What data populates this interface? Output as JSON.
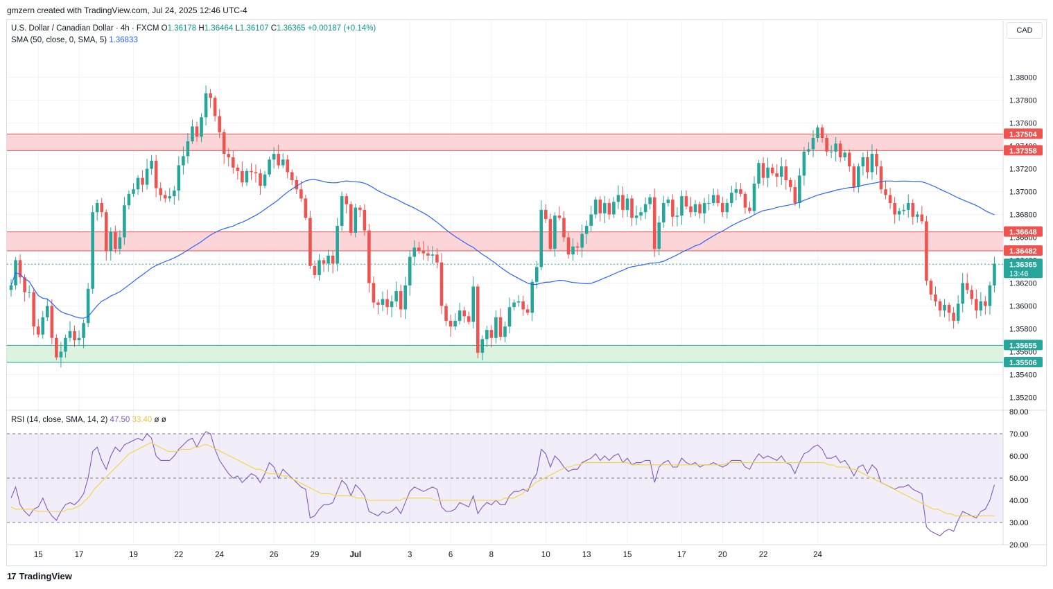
{
  "header": {
    "caption": "gmzern created with TradingView.com, Jul 24, 2025 12:46 UTC-4"
  },
  "legend": {
    "symbol": "U.S. Dollar / Canadian Dollar · 4h · FXCM",
    "o_label": "O",
    "o": "1.36178",
    "h_label": "H",
    "h": "1.36464",
    "l_label": "L",
    "l": "1.36107",
    "c_label": "C",
    "c": "1.36365",
    "change": "+0.00187 (+0.14%)",
    "sma_label": "SMA (50, close, 0, SMA, 5)",
    "sma_value": "1.36833",
    "rsi_label": "RSI (14, close, SMA, 14, 2)",
    "rsi_value": "47.50",
    "rsi_ma_value": "33.40",
    "rsi_extra1": "ø",
    "rsi_extra2": "ø"
  },
  "currency_button": "CAD",
  "footer": {
    "brand": "TradingView",
    "mark": "17"
  },
  "colors": {
    "up": "#26a69a",
    "down": "#ef5350",
    "sma": "#2962ff",
    "rsi": "#7e57c2",
    "rsi_ma": "#f5d33d",
    "resistance_zone": "#fbd5d8",
    "support_zone": "#dcf3df"
  },
  "chart_data": [
    {
      "type": "candlestick",
      "title": "U.S. Dollar / Canadian Dollar · 4h · FXCM",
      "ylim": [
        1.351,
        1.383
      ],
      "y_ticks": [
        "1.38000",
        "1.37800",
        "1.37600",
        "1.37400",
        "1.37200",
        "1.37000",
        "1.36800",
        "1.36600",
        "1.36400",
        "1.36200",
        "1.36000",
        "1.35800",
        "1.35600",
        "1.35400",
        "1.35200"
      ],
      "x_ticks": [
        {
          "label": "15",
          "index": 6
        },
        {
          "label": "17",
          "index": 15
        },
        {
          "label": "19",
          "index": 27
        },
        {
          "label": "22",
          "index": 37
        },
        {
          "label": "24",
          "index": 46
        },
        {
          "label": "26",
          "index": 58
        },
        {
          "label": "29",
          "index": 67
        },
        {
          "label": "Jul",
          "index": 76
        },
        {
          "label": "3",
          "index": 88
        },
        {
          "label": "6",
          "index": 97
        },
        {
          "label": "8",
          "index": 106
        },
        {
          "label": "10",
          "index": 118
        },
        {
          "label": "13",
          "index": 127
        },
        {
          "label": "15",
          "index": 136
        },
        {
          "label": "17",
          "index": 148
        },
        {
          "label": "20",
          "index": 157
        },
        {
          "label": "22",
          "index": 166
        },
        {
          "label": "24",
          "index": 178
        }
      ],
      "candle_closes": [
        1.3618,
        1.364,
        1.3625,
        1.3612,
        1.3612,
        1.3582,
        1.3575,
        1.359,
        1.36,
        1.3572,
        1.3555,
        1.356,
        1.3572,
        1.3578,
        1.357,
        1.3572,
        1.3585,
        1.3615,
        1.3682,
        1.369,
        1.3682,
        1.3648,
        1.3665,
        1.365,
        1.366,
        1.3688,
        1.3698,
        1.3702,
        1.3712,
        1.3706,
        1.372,
        1.3727,
        1.3703,
        1.3697,
        1.3694,
        1.3696,
        1.3701,
        1.3723,
        1.3731,
        1.3744,
        1.3757,
        1.3748,
        1.3765,
        1.3786,
        1.3782,
        1.3766,
        1.3752,
        1.3733,
        1.373,
        1.3721,
        1.3718,
        1.3708,
        1.3718,
        1.3717,
        1.3716,
        1.3705,
        1.3715,
        1.3728,
        1.3733,
        1.3723,
        1.3728,
        1.3717,
        1.371,
        1.3702,
        1.3694,
        1.3677,
        1.3635,
        1.3627,
        1.364,
        1.3637,
        1.3644,
        1.3637,
        1.367,
        1.3696,
        1.3689,
        1.3664,
        1.3686,
        1.3684,
        1.3666,
        1.362,
        1.3603,
        1.3601,
        1.3606,
        1.3599,
        1.3604,
        1.3613,
        1.3597,
        1.3618,
        1.3643,
        1.3651,
        1.3648,
        1.3646,
        1.3644,
        1.3645,
        1.3638,
        1.36,
        1.3587,
        1.3582,
        1.3587,
        1.3596,
        1.3591,
        1.3586,
        1.3617,
        1.3559,
        1.3571,
        1.3579,
        1.3572,
        1.359,
        1.3573,
        1.3582,
        1.3599,
        1.3603,
        1.3604,
        1.3597,
        1.3594,
        1.3621,
        1.3634,
        1.3684,
        1.3676,
        1.365,
        1.3679,
        1.3677,
        1.366,
        1.3645,
        1.3652,
        1.3651,
        1.3663,
        1.367,
        1.368,
        1.3693,
        1.3681,
        1.369,
        1.368,
        1.3691,
        1.3697,
        1.3684,
        1.3694,
        1.3677,
        1.3679,
        1.3682,
        1.3689,
        1.3695,
        1.365,
        1.3673,
        1.369,
        1.3693,
        1.3678,
        1.3679,
        1.3696,
        1.3687,
        1.3682,
        1.3689,
        1.3681,
        1.369,
        1.369,
        1.3697,
        1.369,
        1.3682,
        1.369,
        1.3699,
        1.3702,
        1.3698,
        1.3686,
        1.3683,
        1.3707,
        1.3725,
        1.3712,
        1.3721,
        1.3716,
        1.3713,
        1.3722,
        1.371,
        1.3704,
        1.369,
        1.3714,
        1.3735,
        1.3737,
        1.3747,
        1.3756,
        1.3747,
        1.3735,
        1.3735,
        1.3742,
        1.373,
        1.3734,
        1.3722,
        1.3704,
        1.3722,
        1.373,
        1.3717,
        1.3733,
        1.3722,
        1.3702,
        1.3697,
        1.369,
        1.368,
        1.3683,
        1.3684,
        1.369,
        1.3678,
        1.368,
        1.3674,
        1.3622,
        1.361,
        1.3604,
        1.3596,
        1.3601,
        1.3594,
        1.3587,
        1.3602,
        1.362,
        1.3614,
        1.3606,
        1.3596,
        1.3604,
        1.36,
        1.3618,
        1.3637
      ],
      "sma_50": "smoothed curve from 1.3680 to 1.3683",
      "horizontal_levels": [
        {
          "label": "1.37504",
          "value": 1.37504,
          "color": "#ef5350"
        },
        {
          "label": "1.37358",
          "value": 1.37358,
          "color": "#ef5350"
        },
        {
          "label": "1.36648",
          "value": 1.36648,
          "color": "#ef5350"
        },
        {
          "label": "1.36482",
          "value": 1.36482,
          "color": "#ef5350"
        },
        {
          "label": "1.36365",
          "value": 1.36365,
          "color": "#26a69a",
          "sublabel": "13:46"
        },
        {
          "label": "1.35655",
          "value": 1.35655,
          "color": "#26a69a"
        },
        {
          "label": "1.35506",
          "value": 1.35506,
          "color": "#26a69a"
        }
      ],
      "zones": [
        {
          "from": 1.37358,
          "to": 1.37504,
          "color": "#fbd5d8"
        },
        {
          "from": 1.36482,
          "to": 1.36648,
          "color": "#fbd5d8"
        },
        {
          "from": 1.35506,
          "to": 1.35655,
          "color": "#dcf3df"
        }
      ]
    },
    {
      "type": "line",
      "title": "RSI (14, close, SMA, 14, 2)",
      "ylim": [
        20,
        80
      ],
      "y_ticks": [
        "80.00",
        "70.00",
        "60.00",
        "50.00",
        "40.00",
        "30.00",
        "20.00"
      ],
      "band": [
        30,
        70
      ],
      "series": [
        {
          "values": [
            41,
            46,
            38,
            35,
            33,
            36,
            37,
            41,
            36,
            33,
            31,
            35,
            38,
            39,
            38,
            40,
            43,
            50,
            62,
            64,
            58,
            54,
            60,
            64,
            62,
            65,
            66,
            67,
            68,
            67,
            70,
            68,
            60,
            58,
            58,
            58,
            60,
            63,
            65,
            67,
            68,
            64,
            68,
            71,
            70,
            63,
            58,
            55,
            52,
            50,
            51,
            48,
            50,
            52,
            51,
            48,
            52,
            57,
            55,
            50,
            54,
            52,
            50,
            48,
            46,
            45,
            32,
            33,
            36,
            38,
            38,
            39,
            44,
            49,
            47,
            42,
            47,
            45,
            42,
            35,
            34,
            33,
            35,
            34,
            35,
            37,
            34,
            39,
            44,
            46,
            45,
            44,
            45,
            46,
            45,
            37,
            35,
            35,
            36,
            39,
            38,
            37,
            42,
            34,
            37,
            39,
            38,
            40,
            38,
            38,
            42,
            44,
            44,
            45,
            44,
            49,
            52,
            63,
            61,
            55,
            60,
            58,
            55,
            53,
            54,
            54,
            57,
            58,
            59,
            61,
            58,
            60,
            58,
            60,
            61,
            57,
            59,
            56,
            57,
            57,
            58,
            58,
            48,
            55,
            57,
            58,
            55,
            55,
            59,
            57,
            56,
            57,
            55,
            56,
            56,
            57,
            56,
            55,
            56,
            58,
            58,
            58,
            55,
            54,
            58,
            61,
            59,
            60,
            59,
            58,
            60,
            57,
            56,
            52,
            57,
            61,
            62,
            64,
            65,
            63,
            59,
            59,
            60,
            57,
            58,
            55,
            51,
            55,
            56,
            52,
            56,
            54,
            48,
            47,
            46,
            45,
            46,
            46,
            47,
            45,
            44,
            43,
            28,
            26,
            25,
            24,
            26,
            27,
            26,
            31,
            35,
            34,
            33,
            32,
            35,
            36,
            40,
            47
          ]
        },
        {
          "values": [
            37,
            36,
            36,
            36,
            36,
            36,
            35,
            35,
            35,
            35,
            35,
            35,
            35,
            36,
            36,
            37,
            38,
            40,
            42,
            45,
            47,
            49,
            51,
            53,
            55,
            57,
            59,
            61,
            62,
            63,
            64,
            65,
            66,
            65,
            64,
            63,
            62,
            62,
            62,
            63,
            63,
            63,
            64,
            64,
            65,
            65,
            64,
            63,
            62,
            61,
            60,
            59,
            58,
            57,
            56,
            55,
            54,
            54,
            53,
            52,
            52,
            52,
            51,
            51,
            50,
            49,
            48,
            47,
            46,
            45,
            44,
            43,
            43,
            43,
            42,
            42,
            42,
            42,
            42,
            41,
            41,
            41,
            40,
            40,
            40,
            40,
            40,
            40,
            40,
            40,
            41,
            41,
            41,
            41,
            41,
            41,
            41,
            40,
            40,
            40,
            40,
            40,
            40,
            40,
            40,
            40,
            40,
            40,
            40,
            40,
            40,
            40,
            40,
            41,
            41,
            41,
            42,
            43,
            45,
            46,
            48,
            49,
            50,
            51,
            52,
            53,
            54,
            55,
            55,
            56,
            56,
            57,
            57,
            57,
            57,
            57,
            57,
            57,
            57,
            57,
            57,
            57,
            56,
            56,
            56,
            56,
            56,
            56,
            56,
            56,
            56,
            56,
            56,
            56,
            56,
            56,
            56,
            56,
            56,
            56,
            56,
            56,
            56,
            56,
            57,
            57,
            57,
            57,
            57,
            57,
            57,
            57,
            57,
            57,
            57,
            57,
            57,
            57,
            57,
            57,
            57,
            57,
            57,
            57,
            57,
            57,
            57,
            56,
            56,
            55,
            55,
            55,
            54,
            54,
            53,
            52,
            51,
            50,
            49,
            48,
            47,
            46,
            45,
            44,
            43,
            42,
            41,
            40,
            39,
            38,
            37,
            36,
            36,
            35,
            34,
            34,
            33,
            33,
            33,
            33,
            33,
            33,
            33,
            33,
            33,
            33
          ]
        }
      ]
    }
  ]
}
